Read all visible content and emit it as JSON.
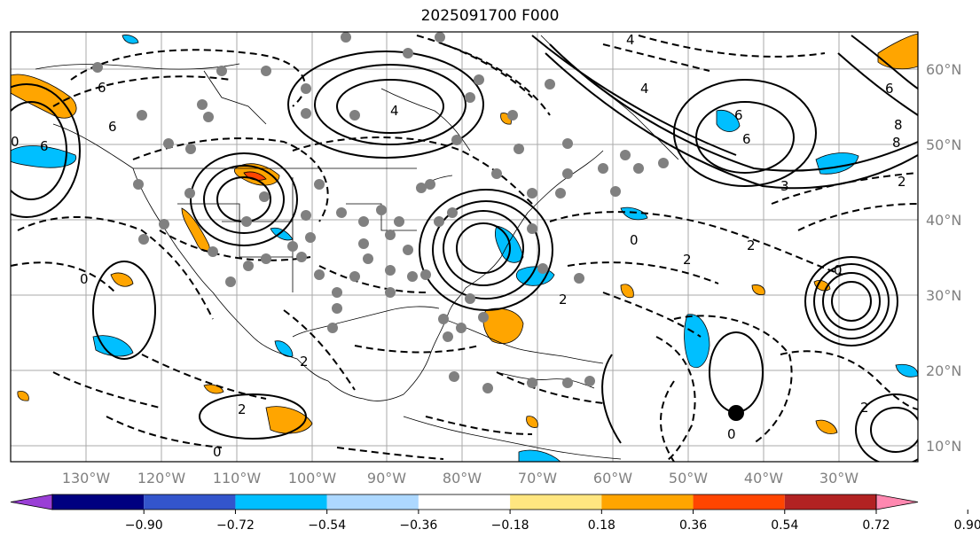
{
  "title": "2025091700 F000",
  "latitude_labels": [
    "60°N",
    "50°N",
    "40°N",
    "30°N",
    "20°N",
    "10°N"
  ],
  "longitude_labels": [
    "130°W",
    "120°W",
    "110°W",
    "100°W",
    "90°W",
    "80°W",
    "70°W",
    "60°W",
    "50°W",
    "40°W",
    "30°W"
  ],
  "colorbar": {
    "ticks": [
      "−0.90",
      "−0.72",
      "−0.54",
      "−0.36",
      "−0.18",
      "0.18",
      "0.36",
      "0.54",
      "0.72",
      "0.90"
    ],
    "colors": [
      "#9a3fd6",
      "#000080",
      "#3355cc",
      "#00bfff",
      "#add8ff",
      "#ffffff",
      "#ffe680",
      "#ffa500",
      "#ff4500",
      "#b22222",
      "#ff88b0"
    ]
  },
  "contour_labels": [
    "4",
    "6",
    "4",
    "8",
    "6",
    "6",
    "2",
    "2",
    "4",
    "6",
    "3",
    "0",
    "6",
    "8",
    "0",
    "2",
    "6",
    "2",
    "0",
    "2",
    "0",
    "0",
    "2",
    "2",
    "0"
  ],
  "marker": "storm-center"
}
